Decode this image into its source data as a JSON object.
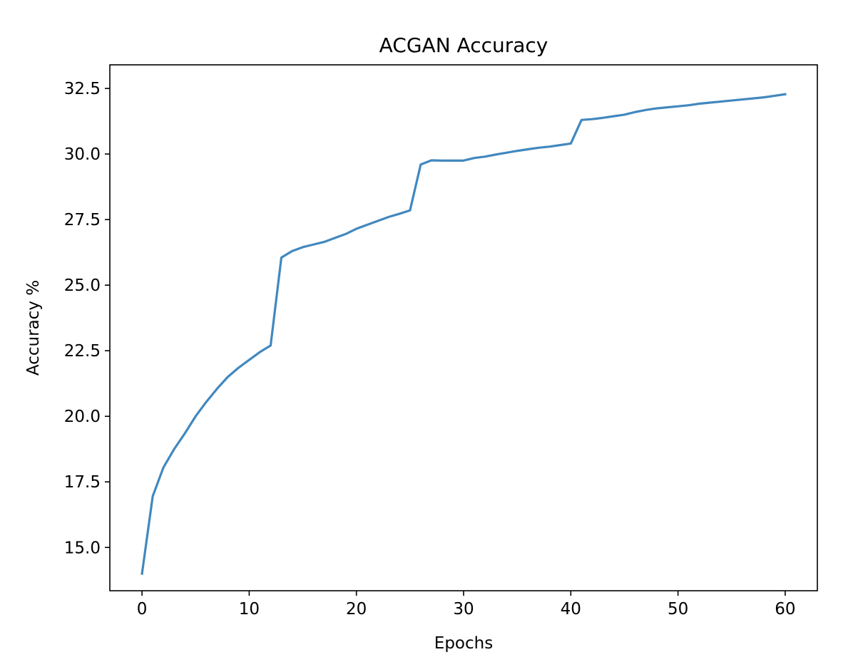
{
  "chart_data": {
    "type": "line",
    "title": "ACGAN Accuracy",
    "xlabel": "Epochs",
    "ylabel": "Accuracy %",
    "xlim": [
      -3,
      63
    ],
    "ylim": [
      13.35,
      33.4
    ],
    "grid": false,
    "legend": "none",
    "x_ticks": [
      0,
      10,
      20,
      30,
      40,
      50,
      60
    ],
    "x_tick_labels": [
      "0",
      "10",
      "20",
      "30",
      "40",
      "50",
      "60"
    ],
    "y_ticks": [
      15.0,
      17.5,
      20.0,
      22.5,
      25.0,
      27.5,
      30.0,
      32.5
    ],
    "y_tick_labels": [
      "15.0",
      "17.5",
      "20.0",
      "22.5",
      "25.0",
      "27.5",
      "30.0",
      "32.5"
    ],
    "series": [
      {
        "color": "#4188bf",
        "x": [
          0,
          1,
          2,
          3,
          4,
          5,
          6,
          7,
          8,
          9,
          10,
          11,
          12,
          13,
          14,
          15,
          16,
          17,
          18,
          19,
          20,
          21,
          22,
          23,
          24,
          25,
          26,
          27,
          28,
          29,
          30,
          31,
          32,
          33,
          34,
          35,
          36,
          37,
          38,
          39,
          40,
          41,
          42,
          43,
          44,
          45,
          46,
          47,
          48,
          49,
          50,
          51,
          52,
          53,
          54,
          55,
          56,
          57,
          58,
          59,
          60
        ],
        "values": [
          14.0,
          16.95,
          18.05,
          18.75,
          19.35,
          20.0,
          20.55,
          21.05,
          21.5,
          21.85,
          22.15,
          22.45,
          22.7,
          26.05,
          26.3,
          26.45,
          26.55,
          26.65,
          26.8,
          26.95,
          27.15,
          27.3,
          27.45,
          27.6,
          27.72,
          27.85,
          29.6,
          29.76,
          29.75,
          29.75,
          29.75,
          29.85,
          29.9,
          29.98,
          30.05,
          30.12,
          30.18,
          30.24,
          30.28,
          30.34,
          30.4,
          31.3,
          31.33,
          31.38,
          31.44,
          31.5,
          31.6,
          31.68,
          31.74,
          31.78,
          31.82,
          31.86,
          31.92,
          31.96,
          32.0,
          32.04,
          32.08,
          32.12,
          32.16,
          32.22,
          32.28
        ]
      }
    ]
  }
}
